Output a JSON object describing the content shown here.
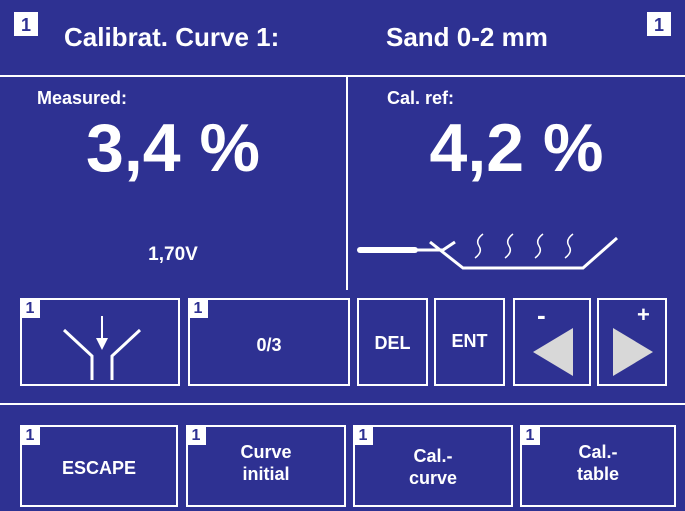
{
  "header": {
    "badge_left": "1",
    "title": "Calibrat. Curve 1:",
    "material": "Sand 0-2 mm",
    "badge_right": "1"
  },
  "measured": {
    "label": "Measured:",
    "value": "3,4 %",
    "voltage": "1,70V"
  },
  "reference": {
    "label": "Cal. ref:",
    "value": "4,2 %"
  },
  "controls": [
    {
      "badge": "1"
    },
    {
      "badge": "1",
      "label": "0/3"
    },
    {
      "label": "DEL"
    },
    {
      "label": "ENT"
    },
    {
      "sign": "-"
    },
    {
      "sign": "+"
    }
  ],
  "menu": [
    {
      "badge": "1",
      "lines": [
        "ESCAPE"
      ]
    },
    {
      "badge": "1",
      "lines": [
        "Curve",
        "initial"
      ]
    },
    {
      "badge": "1",
      "lines": [
        "Cal.-",
        "curve"
      ]
    },
    {
      "badge": "1",
      "lines": [
        "Cal.-",
        "table"
      ]
    }
  ]
}
